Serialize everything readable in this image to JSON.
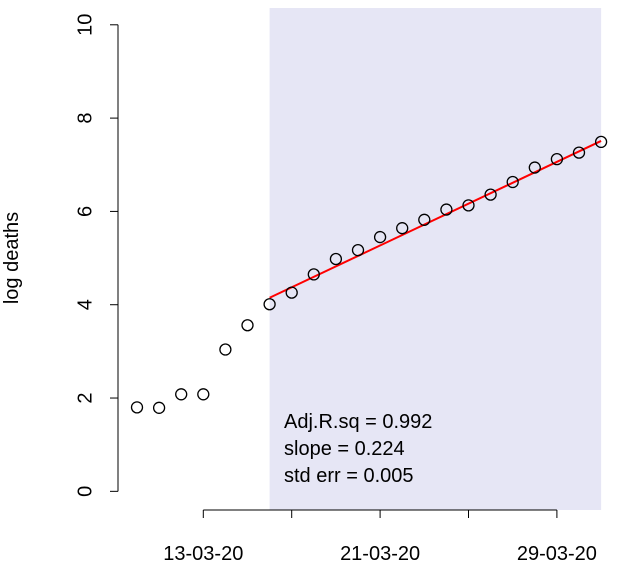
{
  "chart_data": {
    "type": "scatter",
    "y_label": "log deaths",
    "x": [
      "10-03-20",
      "11-03-20",
      "12-03-20",
      "13-03-20",
      "14-03-20",
      "15-03-20",
      "16-03-20",
      "17-03-20",
      "18-03-20",
      "19-03-20",
      "20-03-20",
      "21-03-20",
      "22-03-20",
      "23-03-20",
      "24-03-20",
      "25-03-20",
      "26-03-20",
      "27-03-20",
      "28-03-20",
      "29-03-20",
      "30-03-20",
      "31-03-20"
    ],
    "values": [
      1.8,
      1.79,
      2.08,
      2.08,
      3.04,
      3.56,
      4.01,
      4.26,
      4.65,
      4.98,
      5.17,
      5.45,
      5.64,
      5.82,
      6.04,
      6.13,
      6.36,
      6.63,
      6.94,
      7.12,
      7.26,
      7.49
    ],
    "color": "#000000",
    "ylim": [
      -0.4,
      10.36
    ],
    "yticks": [
      0,
      2,
      4,
      6,
      8,
      10
    ],
    "xticks": [
      "13-03-20",
      null,
      "21-03-20",
      null,
      "29-03-20"
    ],
    "fit": {
      "x": [
        "16-03-20",
        "31-03-20"
      ],
      "values": [
        4.15,
        7.51
      ],
      "color": "#ff0000"
    },
    "shade_color": "#e6e6f5",
    "annotations": [
      "Adj.R.sq = 0.992",
      "slope = 0.224",
      "std err = 0.005"
    ]
  }
}
